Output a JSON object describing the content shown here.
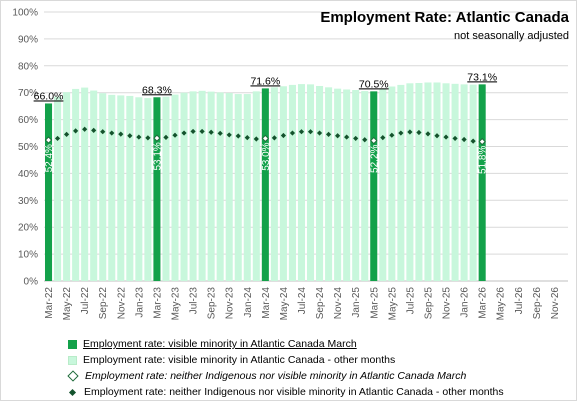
{
  "chart_data": {
    "type": "bar",
    "title": "Employment Rate: Atlantic Canada",
    "subtitle": "not seasonally adjusted",
    "ylim": [
      0,
      100
    ],
    "yticks": [
      0,
      10,
      20,
      30,
      40,
      50,
      60,
      70,
      80,
      90,
      100
    ],
    "ytick_labels": [
      "0%",
      "10%",
      "20%",
      "30%",
      "40%",
      "50%",
      "60%",
      "70%",
      "80%",
      "90%",
      "100%"
    ],
    "grid": true,
    "categories": [
      "Mar-22",
      "Apr-22",
      "May-22",
      "Jun-22",
      "Jul-22",
      "Aug-22",
      "Sep-22",
      "Oct-22",
      "Nov-22",
      "Dec-22",
      "Jan-23",
      "Feb-23",
      "Mar-23",
      "Apr-23",
      "May-23",
      "Jun-23",
      "Jul-23",
      "Aug-23",
      "Sep-23",
      "Oct-23",
      "Nov-23",
      "Dec-23",
      "Jan-24",
      "Feb-24",
      "Mar-24",
      "Apr-24",
      "May-24",
      "Jun-24",
      "Jul-24",
      "Aug-24",
      "Sep-24",
      "Oct-24",
      "Nov-24",
      "Dec-24",
      "Jan-25",
      "Feb-25",
      "Mar-25",
      "Apr-25",
      "May-25",
      "Jun-25",
      "Jul-25",
      "Aug-25",
      "Sep-25",
      "Oct-25",
      "Nov-25",
      "Dec-25",
      "Jan-26",
      "Feb-26",
      "Mar-26",
      "Apr-26",
      "May-26",
      "Jun-26",
      "Jul-26",
      "Aug-26",
      "Sep-26",
      "Oct-26",
      "Nov-26",
      "Dec-26"
    ],
    "xtick_labels": [
      "Mar-22",
      "May-22",
      "Jul-22",
      "Sep-22",
      "Nov-22",
      "Jan-23",
      "Mar-23",
      "May-23",
      "Jul-23",
      "Sep-23",
      "Nov-23",
      "Jan-24",
      "Mar-24",
      "May-24",
      "Jul-24",
      "Sep-24",
      "Nov-24",
      "Jan-25",
      "Mar-25",
      "May-25",
      "Jul-25",
      "Sep-25",
      "Nov-25",
      "Jan-26",
      "Mar-26",
      "May-26",
      "Jul-26",
      "Sep-26",
      "Nov-26"
    ],
    "legend_placement": "bottom",
    "series": [
      {
        "name": "Employment rate: visible minority in Atlantic Canada March",
        "kind": "bar",
        "color": "#13a14a",
        "values": [
          66.0,
          null,
          null,
          null,
          null,
          null,
          null,
          null,
          null,
          null,
          null,
          null,
          68.3,
          null,
          null,
          null,
          null,
          null,
          null,
          null,
          null,
          null,
          null,
          null,
          71.6,
          null,
          null,
          null,
          null,
          null,
          null,
          null,
          null,
          null,
          null,
          null,
          70.5,
          null,
          null,
          null,
          null,
          null,
          null,
          null,
          null,
          null,
          null,
          null,
          73.1,
          null,
          null,
          null,
          null,
          null,
          null,
          null,
          null,
          null
        ],
        "labels": [
          "66.0%",
          "68.3%",
          "71.6%",
          "70.5%",
          "73.1%"
        ]
      },
      {
        "name": "Employment rate: visible minority in Atlantic Canada - other months",
        "kind": "bar",
        "color": "#c8f7dc",
        "values": [
          null,
          68.5,
          70.2,
          71.4,
          71.9,
          70.8,
          69.8,
          69.2,
          69.0,
          68.8,
          68.3,
          68.0,
          null,
          68.5,
          69.3,
          70.0,
          70.5,
          70.7,
          70.4,
          70.1,
          69.9,
          69.5,
          69.5,
          70.5,
          null,
          72.0,
          72.4,
          72.9,
          73.2,
          73.1,
          72.5,
          72.0,
          71.5,
          71.2,
          71.0,
          70.6,
          null,
          71.5,
          72.3,
          72.9,
          73.5,
          73.6,
          73.8,
          73.8,
          73.5,
          73.3,
          73.1,
          73.0,
          null,
          null,
          null,
          null,
          null,
          null,
          null,
          null,
          null,
          null
        ]
      },
      {
        "name": "Employment rate: neither Indigenous nor visible minority in Atlantic Canada March",
        "kind": "marker",
        "color": "#1e6b3a",
        "values": [
          52.4,
          null,
          null,
          null,
          null,
          null,
          null,
          null,
          null,
          null,
          null,
          null,
          53.1,
          null,
          null,
          null,
          null,
          null,
          null,
          null,
          null,
          null,
          null,
          null,
          53.0,
          null,
          null,
          null,
          null,
          null,
          null,
          null,
          null,
          null,
          null,
          null,
          52.2,
          null,
          null,
          null,
          null,
          null,
          null,
          null,
          null,
          null,
          null,
          null,
          51.8,
          null,
          null,
          null,
          null,
          null,
          null,
          null,
          null,
          null
        ],
        "labels": [
          "52.4%",
          "53.1%",
          "53.0%",
          "52.2%",
          "51.8%"
        ]
      },
      {
        "name": "Employment rate: neither Indigenous nor visible minority in Atlantic Canada - other months",
        "kind": "marker",
        "color": "#14532d",
        "values": [
          null,
          53.0,
          54.5,
          55.8,
          56.4,
          56.0,
          55.5,
          55.0,
          54.6,
          54.0,
          53.5,
          53.2,
          null,
          53.4,
          54.2,
          55.0,
          55.6,
          55.6,
          55.3,
          54.9,
          54.3,
          53.9,
          53.3,
          52.8,
          null,
          53.2,
          54.1,
          55.0,
          55.5,
          55.5,
          55.0,
          54.5,
          54.0,
          53.5,
          53.0,
          52.5,
          null,
          53.3,
          54.2,
          55.0,
          55.4,
          55.2,
          54.7,
          54.0,
          53.5,
          53.0,
          52.6,
          52.0,
          null,
          null,
          null,
          null,
          null,
          null,
          null,
          null,
          null,
          null
        ]
      }
    ]
  }
}
